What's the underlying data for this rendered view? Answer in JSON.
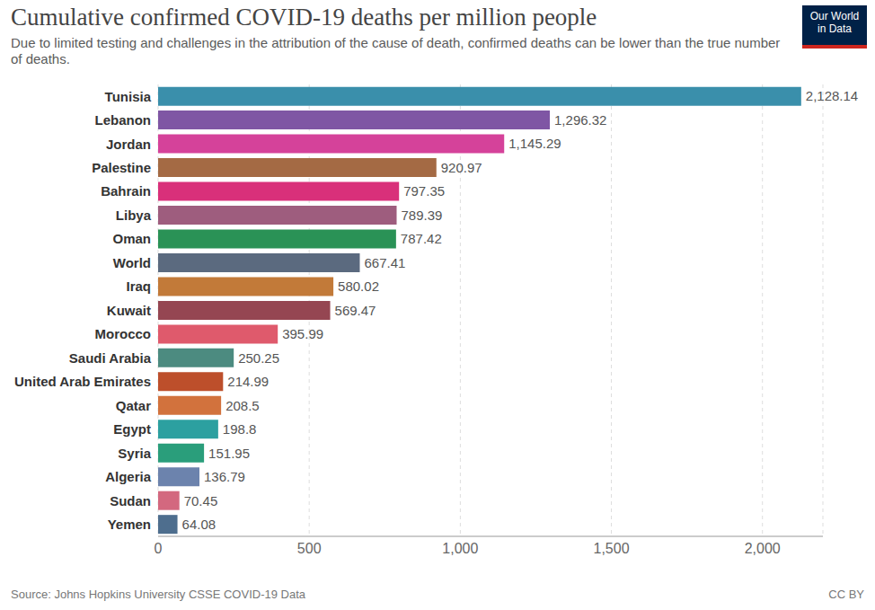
{
  "chart_data": {
    "type": "bar",
    "orientation": "horizontal",
    "title": "Cumulative confirmed COVID-19 deaths per million people",
    "subtitle": "Due to limited testing and challenges in the attribution of the cause of death, confirmed deaths can be lower than the true number of deaths.",
    "source": "Source: Johns Hopkins University CSSE COVID-19 Data",
    "license": "CC BY",
    "logo": "Our World in Data",
    "categories": [
      "Tunisia",
      "Lebanon",
      "Jordan",
      "Palestine",
      "Bahrain",
      "Libya",
      "Oman",
      "World",
      "Iraq",
      "Kuwait",
      "Morocco",
      "Saudi Arabia",
      "United Arab Emirates",
      "Qatar",
      "Egypt",
      "Syria",
      "Algeria",
      "Sudan",
      "Yemen"
    ],
    "values": [
      2128.14,
      1296.32,
      1145.29,
      920.97,
      797.35,
      789.39,
      787.42,
      667.41,
      580.02,
      569.47,
      395.99,
      250.25,
      214.99,
      208.5,
      198.8,
      151.95,
      136.79,
      70.45,
      64.08
    ],
    "value_labels": [
      "2,128.14",
      "1,296.32",
      "1,145.29",
      "920.97",
      "797.35",
      "789.39",
      "787.42",
      "667.41",
      "580.02",
      "569.47",
      "395.99",
      "250.25",
      "214.99",
      "208.5",
      "198.8",
      "151.95",
      "136.79",
      "70.45",
      "64.08"
    ],
    "colors": [
      "#3a8fab",
      "#7f56a4",
      "#d5429a",
      "#a46a44",
      "#d9307a",
      "#9e5d7e",
      "#2a9256",
      "#5b6a7f",
      "#c27a39",
      "#954652",
      "#df5a6c",
      "#4c8b80",
      "#bd4f2b",
      "#d2723d",
      "#2ca0a0",
      "#2a9e7b",
      "#6c83ad",
      "#d3687f",
      "#4e6e8e"
    ],
    "xlim": [
      0,
      2200
    ],
    "xticks": [
      0,
      500,
      {
        "value": 1000,
        "label": "1,000"
      },
      {
        "value": 1500,
        "label": "1,500"
      },
      {
        "value": 2000,
        "label": "2,000"
      }
    ],
    "grid": true,
    "data_labels": true
  }
}
